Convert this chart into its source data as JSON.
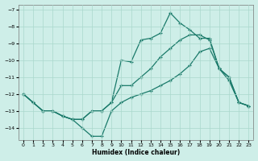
{
  "xlabel": "Humidex (Indice chaleur)",
  "background_color": "#ceeee8",
  "grid_color": "#aad8cc",
  "line_color": "#1a7a6a",
  "xlim": [
    -0.5,
    23.5
  ],
  "ylim": [
    -14.7,
    -6.7
  ],
  "xticks": [
    0,
    1,
    2,
    3,
    4,
    5,
    6,
    7,
    8,
    9,
    10,
    11,
    12,
    13,
    14,
    15,
    16,
    17,
    18,
    19,
    20,
    21,
    22,
    23
  ],
  "yticks": [
    -7,
    -8,
    -9,
    -10,
    -11,
    -12,
    -13,
    -14
  ],
  "line_top_x": [
    0,
    1,
    2,
    3,
    4,
    5,
    6,
    7,
    8,
    9,
    10,
    11,
    12,
    13,
    14,
    15,
    16,
    17,
    18,
    19,
    20,
    21,
    22,
    23
  ],
  "line_top_y": [
    -12.0,
    -12.5,
    -13.0,
    -13.0,
    -13.3,
    -13.5,
    -13.5,
    -13.0,
    -13.0,
    -12.5,
    -10.0,
    -10.1,
    -8.8,
    -8.7,
    -8.4,
    -7.2,
    -7.8,
    -8.2,
    -8.7,
    -8.7,
    -10.5,
    -11.0,
    -12.5,
    -12.7
  ],
  "line_mid_x": [
    0,
    2,
    3,
    4,
    5,
    6,
    7,
    8,
    9,
    10,
    11,
    12,
    13,
    14,
    15,
    16,
    17,
    18,
    19,
    20,
    21,
    22,
    23
  ],
  "line_mid_y": [
    -12.0,
    -13.0,
    -13.0,
    -13.3,
    -13.5,
    -13.5,
    -13.0,
    -13.0,
    -12.5,
    -11.5,
    -11.5,
    -11.0,
    -10.5,
    -9.8,
    -9.3,
    -8.8,
    -8.5,
    -8.5,
    -8.8,
    -10.5,
    -11.0,
    -12.5,
    -12.7
  ],
  "line_bot_x": [
    0,
    1,
    2,
    3,
    4,
    5,
    6,
    7,
    8,
    9,
    10,
    11,
    12,
    13,
    14,
    15,
    16,
    17,
    18,
    19,
    20,
    21,
    22,
    23
  ],
  "line_bot_y": [
    -12.0,
    -12.5,
    -13.0,
    -13.0,
    -13.3,
    -13.5,
    -14.0,
    -14.5,
    -14.5,
    -13.0,
    -12.5,
    -12.2,
    -12.0,
    -11.8,
    -11.5,
    -11.2,
    -10.8,
    -10.3,
    -9.5,
    -9.3,
    -10.5,
    -11.2,
    -12.5,
    -12.7
  ]
}
